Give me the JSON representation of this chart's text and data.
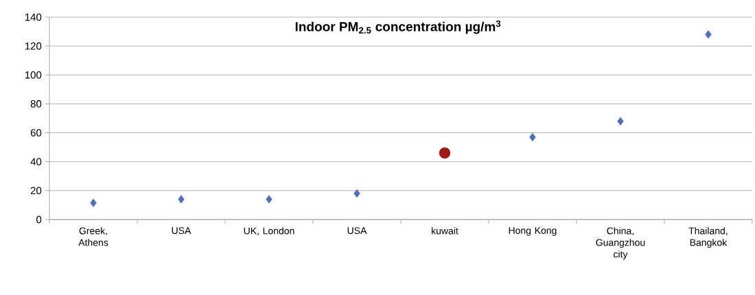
{
  "chart_data": {
    "type": "scatter",
    "title": "Indoor PM$_{2.5}$ concentration µg/m$^{3}$",
    "categories": [
      "Greek, Athens",
      "USA",
      "UK, London",
      "USA",
      "kuwait",
      "Hong Kong",
      "China, Guangzhou city",
      "Thailand, Bangkok"
    ],
    "series": [
      {
        "color": "#4f6fb8",
        "marker": "diamond",
        "values": [
          11.5,
          14,
          14,
          18,
          null,
          57,
          68,
          128
        ]
      },
      {
        "color": "#a01818",
        "marker": "circle",
        "values": [
          null,
          null,
          null,
          null,
          46,
          null,
          null,
          null
        ]
      }
    ],
    "ylim": [
      0,
      140
    ],
    "yticks": [
      0,
      20,
      40,
      60,
      80,
      100,
      120,
      140
    ],
    "grid": "y"
  }
}
